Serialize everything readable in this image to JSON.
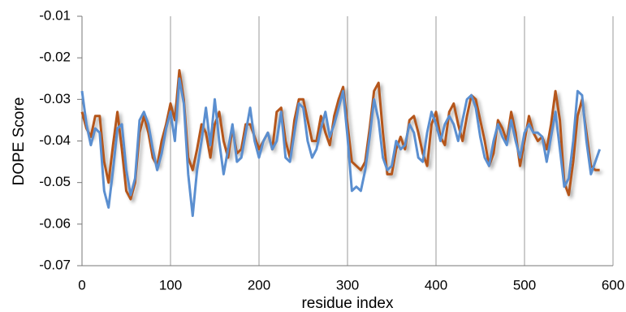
{
  "chart_data": {
    "type": "line",
    "x_label": "residue index",
    "y_label": "DOPE  Score",
    "x": [
      0,
      5,
      10,
      15,
      20,
      25,
      30,
      35,
      40,
      45,
      50,
      55,
      60,
      65,
      70,
      75,
      80,
      85,
      90,
      95,
      100,
      105,
      110,
      115,
      120,
      125,
      130,
      135,
      140,
      145,
      150,
      155,
      160,
      165,
      170,
      175,
      180,
      185,
      190,
      195,
      200,
      205,
      210,
      215,
      220,
      225,
      230,
      235,
      240,
      245,
      250,
      255,
      260,
      265,
      270,
      275,
      280,
      285,
      290,
      295,
      300,
      305,
      310,
      315,
      320,
      325,
      330,
      335,
      340,
      345,
      350,
      355,
      360,
      365,
      370,
      375,
      380,
      385,
      390,
      395,
      400,
      405,
      410,
      415,
      420,
      425,
      430,
      435,
      440,
      445,
      450,
      455,
      460,
      465,
      470,
      475,
      480,
      485,
      490,
      495,
      500,
      505,
      510,
      515,
      520,
      525,
      530,
      535,
      540,
      545,
      550,
      555,
      560,
      565,
      570,
      575,
      580,
      585
    ],
    "series": [
      {
        "color": "#b5561b",
        "values": [
          -0.033,
          -0.037,
          -0.039,
          -0.034,
          -0.034,
          -0.045,
          -0.05,
          -0.041,
          -0.033,
          -0.042,
          -0.052,
          -0.054,
          -0.05,
          -0.038,
          -0.034,
          -0.038,
          -0.044,
          -0.046,
          -0.04,
          -0.036,
          -0.031,
          -0.035,
          -0.023,
          -0.03,
          -0.044,
          -0.047,
          -0.042,
          -0.036,
          -0.038,
          -0.044,
          -0.036,
          -0.033,
          -0.04,
          -0.044,
          -0.037,
          -0.043,
          -0.042,
          -0.036,
          -0.036,
          -0.039,
          -0.042,
          -0.04,
          -0.038,
          -0.042,
          -0.033,
          -0.032,
          -0.04,
          -0.044,
          -0.035,
          -0.03,
          -0.03,
          -0.035,
          -0.04,
          -0.04,
          -0.034,
          -0.038,
          -0.041,
          -0.034,
          -0.03,
          -0.027,
          -0.036,
          -0.045,
          -0.046,
          -0.047,
          -0.045,
          -0.037,
          -0.028,
          -0.026,
          -0.038,
          -0.048,
          -0.048,
          -0.042,
          -0.039,
          -0.042,
          -0.035,
          -0.034,
          -0.038,
          -0.043,
          -0.046,
          -0.036,
          -0.033,
          -0.039,
          -0.041,
          -0.033,
          -0.031,
          -0.036,
          -0.04,
          -0.034,
          -0.029,
          -0.03,
          -0.035,
          -0.04,
          -0.046,
          -0.043,
          -0.035,
          -0.037,
          -0.04,
          -0.033,
          -0.038,
          -0.046,
          -0.04,
          -0.034,
          -0.038,
          -0.04,
          -0.039,
          -0.042,
          -0.036,
          -0.028,
          -0.035,
          -0.05,
          -0.053,
          -0.045,
          -0.034,
          -0.03,
          -0.038,
          -0.046,
          -0.047,
          -0.047
        ]
      },
      {
        "color": "#5b8fd0",
        "values": [
          -0.028,
          -0.036,
          -0.041,
          -0.037,
          -0.038,
          -0.052,
          -0.056,
          -0.047,
          -0.037,
          -0.036,
          -0.047,
          -0.053,
          -0.049,
          -0.035,
          -0.033,
          -0.036,
          -0.042,
          -0.047,
          -0.043,
          -0.037,
          -0.033,
          -0.04,
          -0.025,
          -0.031,
          -0.048,
          -0.058,
          -0.047,
          -0.04,
          -0.032,
          -0.041,
          -0.03,
          -0.04,
          -0.048,
          -0.042,
          -0.036,
          -0.045,
          -0.044,
          -0.038,
          -0.032,
          -0.04,
          -0.044,
          -0.04,
          -0.038,
          -0.042,
          -0.04,
          -0.033,
          -0.044,
          -0.045,
          -0.038,
          -0.031,
          -0.032,
          -0.04,
          -0.044,
          -0.042,
          -0.037,
          -0.033,
          -0.039,
          -0.036,
          -0.032,
          -0.028,
          -0.039,
          -0.052,
          -0.051,
          -0.052,
          -0.047,
          -0.039,
          -0.03,
          -0.035,
          -0.044,
          -0.047,
          -0.046,
          -0.04,
          -0.042,
          -0.041,
          -0.036,
          -0.038,
          -0.044,
          -0.045,
          -0.038,
          -0.033,
          -0.036,
          -0.04,
          -0.036,
          -0.034,
          -0.036,
          -0.04,
          -0.035,
          -0.03,
          -0.029,
          -0.032,
          -0.039,
          -0.044,
          -0.046,
          -0.04,
          -0.036,
          -0.039,
          -0.041,
          -0.035,
          -0.04,
          -0.044,
          -0.038,
          -0.036,
          -0.038,
          -0.038,
          -0.039,
          -0.045,
          -0.039,
          -0.033,
          -0.042,
          -0.051,
          -0.049,
          -0.04,
          -0.028,
          -0.029,
          -0.04,
          -0.048,
          -0.045,
          -0.042
        ]
      }
    ],
    "xlim": [
      0,
      600
    ],
    "xticks": [
      0,
      100,
      200,
      300,
      400,
      500,
      600
    ],
    "ylim": [
      -0.07,
      -0.01
    ],
    "yticks": [
      -0.07,
      -0.06,
      -0.05,
      -0.04,
      -0.03,
      -0.02,
      -0.01
    ],
    "grid": "x"
  }
}
